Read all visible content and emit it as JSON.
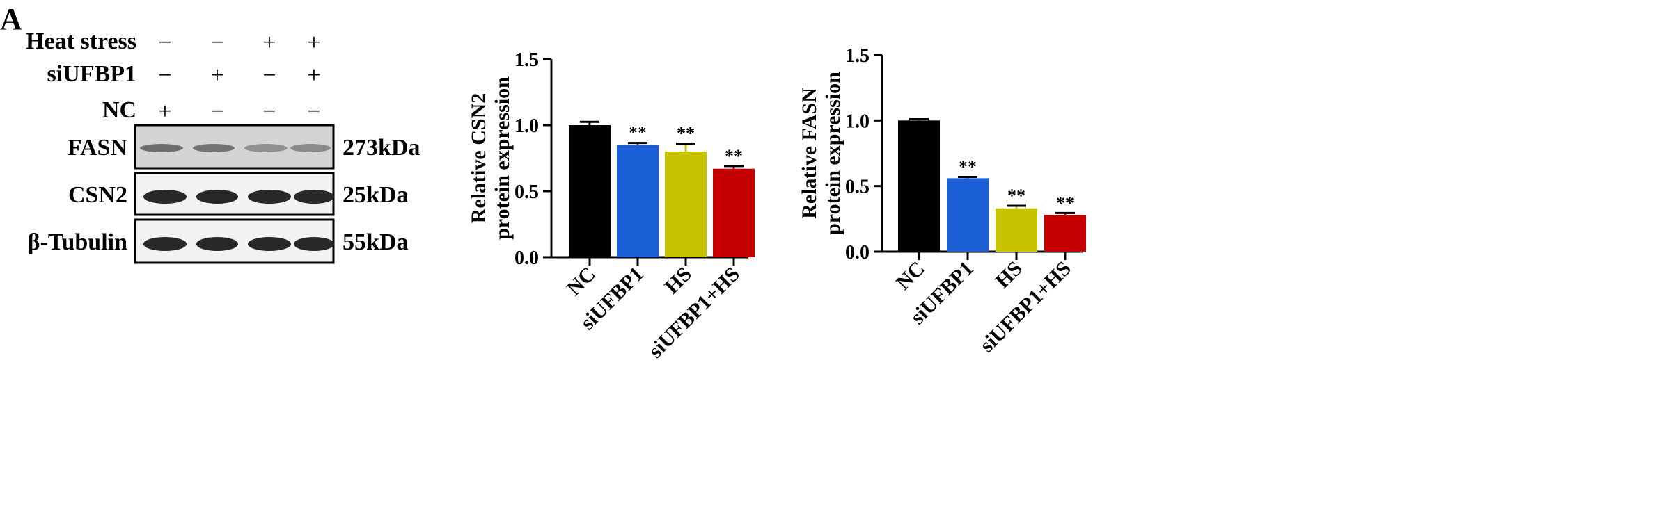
{
  "panel_label": "A",
  "blot": {
    "conditions": [
      {
        "label": "Heat stress",
        "signs": [
          "−",
          "−",
          "+",
          "+"
        ]
      },
      {
        "label": "siUFBP1",
        "signs": [
          "−",
          "+",
          "−",
          "+"
        ]
      },
      {
        "label": "NC",
        "signs": [
          "+",
          "−",
          "−",
          "−"
        ]
      }
    ],
    "rows": [
      {
        "label": "FASN",
        "size": "273kDa",
        "intensity": [
          0.55,
          0.5,
          0.25,
          0.3
        ]
      },
      {
        "label": "CSN2",
        "size": "25kDa",
        "intensity": [
          1,
          1,
          1,
          1
        ]
      },
      {
        "label": "β-Tubulin",
        "size": "55kDa",
        "intensity": [
          1,
          1,
          1,
          1
        ]
      }
    ]
  },
  "chart_data": [
    {
      "type": "bar",
      "categories": [
        "NC",
        "siUFBP1",
        "HS",
        "siUFBP1+HS"
      ],
      "values": [
        1.0,
        0.85,
        0.8,
        0.67
      ],
      "errors": [
        0.025,
        0.015,
        0.06,
        0.02
      ],
      "annotations": [
        "",
        "**",
        "**",
        "**"
      ],
      "colors": [
        "#000000",
        "#1a5fd6",
        "#c8c300",
        "#c40000"
      ],
      "ylabel": "Relative CSN2\nprotein expression",
      "ylim": [
        0,
        1.5
      ],
      "yticks": [
        "0.0",
        "0.5",
        "1.0",
        "1.5"
      ]
    },
    {
      "type": "bar",
      "categories": [
        "NC",
        "siUFBP1",
        "HS",
        "siUFBP1+HS"
      ],
      "values": [
        1.0,
        0.56,
        0.33,
        0.28
      ],
      "errors": [
        0.01,
        0.01,
        0.02,
        0.015
      ],
      "annotations": [
        "",
        "**",
        "**",
        "**"
      ],
      "colors": [
        "#000000",
        "#1a5fd6",
        "#c8c300",
        "#c40000"
      ],
      "ylabel": "Relative FASN\nprotein expression",
      "ylim": [
        0,
        1.5
      ],
      "yticks": [
        "0.0",
        "0.5",
        "1.0",
        "1.5"
      ]
    }
  ]
}
